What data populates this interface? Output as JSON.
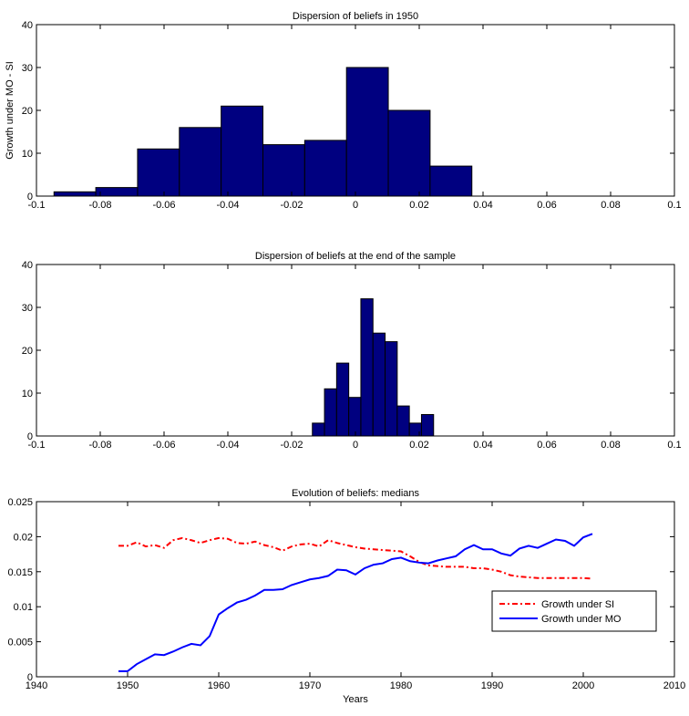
{
  "chart_data": [
    {
      "type": "histogram",
      "title": "Dispersion of beliefs in 1950",
      "ylabel": "Growth under MO - SI",
      "bins": [
        -0.0945,
        -0.0814,
        -0.0683,
        -0.0552,
        -0.0421,
        -0.029,
        -0.0159,
        -0.0028,
        0.0103,
        0.0234,
        0.0365
      ],
      "values": [
        1,
        2,
        11,
        16,
        21,
        12,
        13,
        30,
        20,
        7
      ],
      "color": "#000080",
      "xlim": [
        -0.1,
        0.1
      ],
      "xticks": [
        -0.1,
        -0.08,
        -0.06,
        -0.04,
        -0.02,
        0,
        0.02,
        0.04,
        0.06,
        0.08,
        0.1
      ],
      "ylim": [
        0,
        40
      ],
      "yticks": [
        0,
        10,
        20,
        30,
        40
      ]
    },
    {
      "type": "histogram",
      "title": "Dispersion of beliefs at the end of the sample",
      "bins": [
        -0.0135,
        -0.0097,
        -0.0059,
        -0.0021,
        0.0017,
        0.0055,
        0.0093,
        0.0131,
        0.0169,
        0.0207,
        0.0245
      ],
      "values": [
        3,
        11,
        17,
        9,
        32,
        24,
        22,
        7,
        3,
        5
      ],
      "color": "#000080",
      "xlim": [
        -0.1,
        0.1
      ],
      "xticks": [
        -0.1,
        -0.08,
        -0.06,
        -0.04,
        -0.02,
        0,
        0.02,
        0.04,
        0.06,
        0.08,
        0.1
      ],
      "ylim": [
        0,
        40
      ],
      "yticks": [
        0,
        10,
        20,
        30,
        40
      ]
    },
    {
      "type": "line",
      "title": "Evolution of beliefs: medians",
      "xlabel": "Years",
      "x": [
        1949,
        1950,
        1951,
        1952,
        1953,
        1954,
        1955,
        1956,
        1957,
        1958,
        1959,
        1960,
        1961,
        1962,
        1963,
        1964,
        1965,
        1966,
        1967,
        1968,
        1969,
        1970,
        1971,
        1972,
        1973,
        1974,
        1975,
        1976,
        1977,
        1978,
        1979,
        1980,
        1981,
        1982,
        1983,
        1984,
        1985,
        1986,
        1987,
        1988,
        1989,
        1990,
        1991,
        1992,
        1993,
        1994,
        1995,
        1996,
        1997,
        1998,
        1999,
        2000,
        2001
      ],
      "series": [
        {
          "name": "Growth under SI",
          "color": "#ff0000",
          "dash": "dashdot",
          "values": [
            0.0187,
            0.0187,
            0.0192,
            0.0186,
            0.0188,
            0.0184,
            0.0195,
            0.0198,
            0.0195,
            0.0191,
            0.0195,
            0.0198,
            0.0197,
            0.0191,
            0.019,
            0.0193,
            0.0188,
            0.0185,
            0.018,
            0.0186,
            0.0189,
            0.019,
            0.0186,
            0.0195,
            0.0191,
            0.0188,
            0.0185,
            0.0183,
            0.0182,
            0.0181,
            0.018,
            0.0179,
            0.0172,
            0.0164,
            0.0159,
            0.0158,
            0.0157,
            0.0157,
            0.0157,
            0.0155,
            0.0155,
            0.0153,
            0.015,
            0.0145,
            0.0143,
            0.0142,
            0.0141,
            0.0141,
            0.0141,
            0.0141,
            0.0141,
            0.0141,
            0.014
          ]
        },
        {
          "name": "Growth under MO",
          "color": "#0000ff",
          "dash": "solid",
          "values": [
            0.0008,
            0.0008,
            0.0018,
            0.0025,
            0.0032,
            0.0031,
            0.0036,
            0.0042,
            0.0047,
            0.0045,
            0.0058,
            0.0089,
            0.0098,
            0.0106,
            0.011,
            0.0116,
            0.0124,
            0.0124,
            0.0125,
            0.0131,
            0.0135,
            0.0139,
            0.0141,
            0.0144,
            0.0153,
            0.0152,
            0.0146,
            0.0155,
            0.016,
            0.0162,
            0.0168,
            0.017,
            0.0165,
            0.0163,
            0.0162,
            0.0166,
            0.0169,
            0.0172,
            0.0182,
            0.0188,
            0.0182,
            0.0182,
            0.0176,
            0.0173,
            0.0183,
            0.0187,
            0.0184,
            0.019,
            0.0196,
            0.0194,
            0.0187,
            0.0199,
            0.0204
          ]
        }
      ],
      "xlim": [
        1940,
        2010
      ],
      "xticks": [
        1940,
        1950,
        1960,
        1970,
        1980,
        1990,
        2000,
        2010
      ],
      "ylim": [
        0,
        0.025
      ],
      "yticks": [
        0,
        0.005,
        0.01,
        0.015,
        0.02,
        0.025
      ],
      "legend": "lower right"
    }
  ]
}
